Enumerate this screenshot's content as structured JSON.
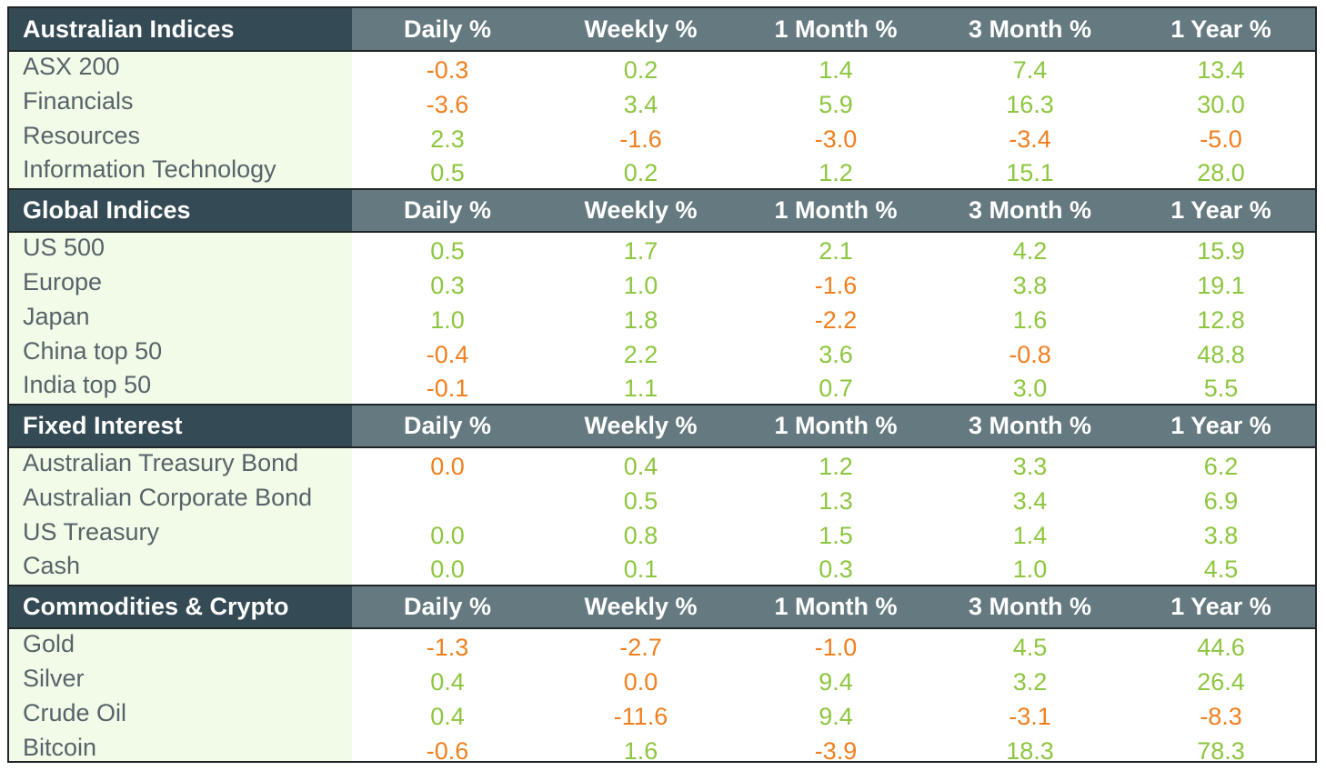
{
  "columns": [
    "Daily %",
    "Weekly %",
    "1 Month %",
    "3 Month %",
    "1 Year %"
  ],
  "colors": {
    "positive": "#8dc63f",
    "negative": "#f07f1e",
    "section_header": "#344a54",
    "column_header": "#657a80",
    "name_bg": "#f1fbe8"
  },
  "sections": [
    {
      "title": "Australian Indices",
      "rows": [
        {
          "name": "ASX 200",
          "values": [
            "-0.3",
            "0.2",
            "1.4",
            "7.4",
            "13.4"
          ]
        },
        {
          "name": "Financials",
          "values": [
            "-3.6",
            "3.4",
            "5.9",
            "16.3",
            "30.0"
          ]
        },
        {
          "name": "Resources",
          "values": [
            "2.3",
            "-1.6",
            "-3.0",
            "-3.4",
            "-5.0"
          ]
        },
        {
          "name": "Information Technology",
          "values": [
            "0.5",
            "0.2",
            "1.2",
            "15.1",
            "28.0"
          ]
        }
      ]
    },
    {
      "title": "Global Indices",
      "rows": [
        {
          "name": "US 500",
          "values": [
            "0.5",
            "1.7",
            "2.1",
            "4.2",
            "15.9"
          ]
        },
        {
          "name": "Europe",
          "values": [
            "0.3",
            "1.0",
            "-1.6",
            "3.8",
            "19.1"
          ]
        },
        {
          "name": "Japan",
          "values": [
            "1.0",
            "1.8",
            "-2.2",
            "1.6",
            "12.8"
          ]
        },
        {
          "name": "China top 50",
          "values": [
            "-0.4",
            "2.2",
            "3.6",
            "-0.8",
            "48.8"
          ]
        },
        {
          "name": "India top 50",
          "values": [
            "-0.1",
            "1.1",
            "0.7",
            "3.0",
            "5.5"
          ]
        }
      ]
    },
    {
      "title": "Fixed Interest",
      "rows": [
        {
          "name": "Australian Treasury Bond",
          "values": [
            "0.0",
            "0.4",
            "1.2",
            "3.3",
            "6.2"
          ],
          "neg_override": [
            true,
            false,
            false,
            false,
            false
          ]
        },
        {
          "name": "Australian Corporate Bond",
          "values": [
            "",
            "0.5",
            "1.3",
            "3.4",
            "6.9"
          ]
        },
        {
          "name": "US Treasury",
          "values": [
            "0.0",
            "0.8",
            "1.5",
            "1.4",
            "3.8"
          ]
        },
        {
          "name": "Cash",
          "values": [
            "0.0",
            "0.1",
            "0.3",
            "1.0",
            "4.5"
          ]
        }
      ]
    },
    {
      "title": "Commodities & Crypto",
      "rows": [
        {
          "name": "Gold",
          "values": [
            "-1.3",
            "-2.7",
            "-1.0",
            "4.5",
            "44.6"
          ]
        },
        {
          "name": "Silver",
          "values": [
            "0.4",
            "0.0",
            "9.4",
            "3.2",
            "26.4"
          ],
          "neg_override": [
            false,
            true,
            false,
            false,
            false
          ]
        },
        {
          "name": "Crude Oil",
          "values": [
            "0.4",
            "-11.6",
            "9.4",
            "-3.1",
            "-8.3"
          ]
        },
        {
          "name": "Bitcoin",
          "values": [
            "-0.6",
            "1.6",
            "-3.9",
            "18.3",
            "78.3"
          ]
        }
      ]
    }
  ]
}
